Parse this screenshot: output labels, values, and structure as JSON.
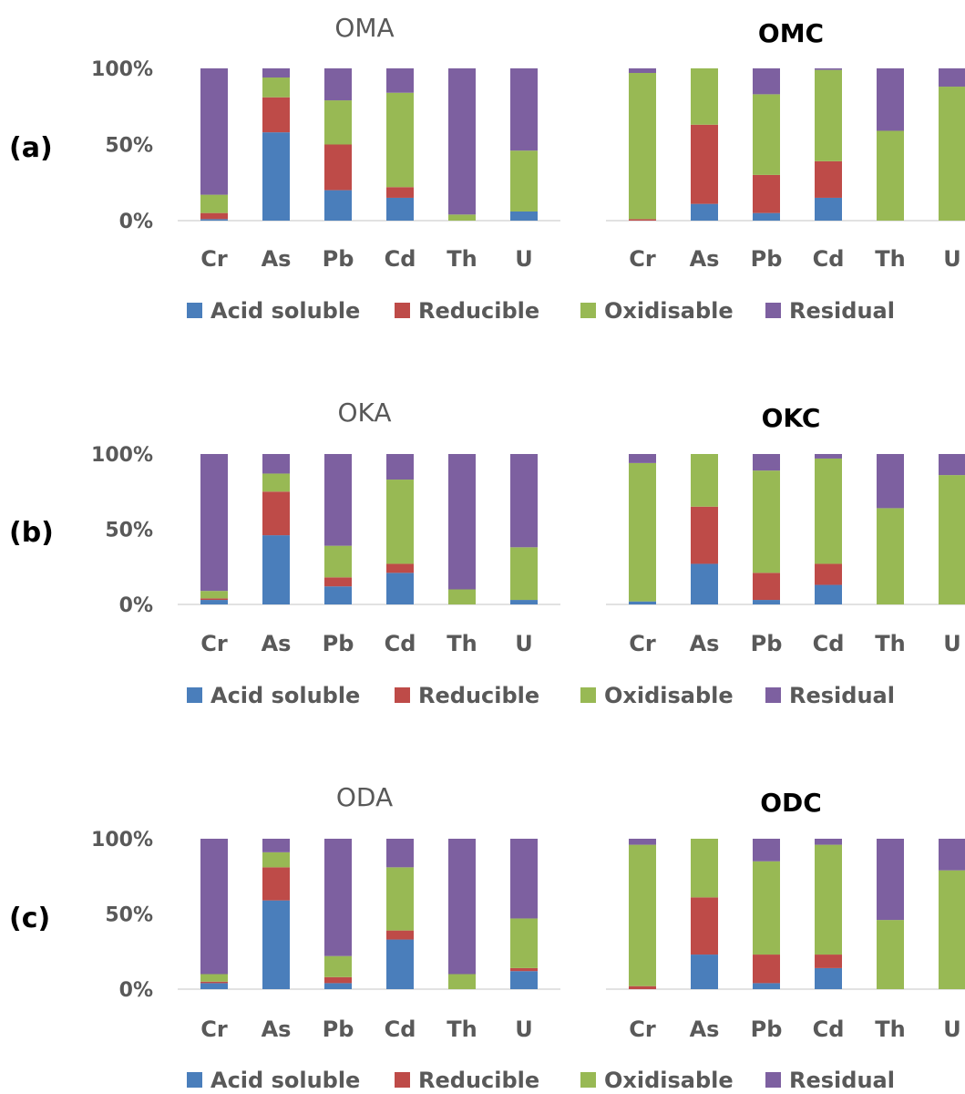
{
  "panel_labels": [
    "(a)",
    "(b)",
    "(c)"
  ],
  "legend": [
    {
      "label": "Acid soluble",
      "color": "#4a7ebb"
    },
    {
      "label": "Reducible",
      "color": "#be4b48"
    },
    {
      "label": "Oxidisable",
      "color": "#98b954"
    },
    {
      "label": "Residual",
      "color": "#7d60a0"
    }
  ],
  "y_ticks": [
    "100%",
    "50%",
    "0%"
  ],
  "chart_data": [
    {
      "type": "bar",
      "stacked": true,
      "title": "OMA",
      "title_bold": false,
      "categories": [
        "Cr",
        "As",
        "Pb",
        "Cd",
        "Th",
        "U"
      ],
      "ylim": [
        0,
        100
      ],
      "series": [
        {
          "name": "Acid soluble",
          "values": [
            1,
            58,
            20,
            15,
            0,
            6
          ]
        },
        {
          "name": "Reducible",
          "values": [
            4,
            23,
            30,
            7,
            0,
            0
          ]
        },
        {
          "name": "Oxidisable",
          "values": [
            12,
            13,
            29,
            62,
            4,
            40
          ]
        },
        {
          "name": "Residual",
          "values": [
            83,
            6,
            21,
            16,
            96,
            54
          ]
        }
      ]
    },
    {
      "type": "bar",
      "stacked": true,
      "title": "OMC",
      "title_bold": true,
      "categories": [
        "Cr",
        "As",
        "Pb",
        "Cd",
        "Th",
        "U"
      ],
      "ylim": [
        0,
        100
      ],
      "series": [
        {
          "name": "Acid soluble",
          "values": [
            0,
            11,
            5,
            15,
            0,
            0
          ]
        },
        {
          "name": "Reducible",
          "values": [
            1,
            52,
            25,
            24,
            0,
            0
          ]
        },
        {
          "name": "Oxidisable",
          "values": [
            96,
            37,
            53,
            60,
            59,
            88
          ]
        },
        {
          "name": "Residual",
          "values": [
            3,
            0,
            17,
            1,
            41,
            12
          ]
        }
      ]
    },
    {
      "type": "bar",
      "stacked": true,
      "title": "OKA",
      "title_bold": false,
      "categories": [
        "Cr",
        "As",
        "Pb",
        "Cd",
        "Th",
        "U"
      ],
      "ylim": [
        0,
        100
      ],
      "series": [
        {
          "name": "Acid soluble",
          "values": [
            3,
            46,
            12,
            21,
            0,
            3
          ]
        },
        {
          "name": "Reducible",
          "values": [
            1,
            29,
            6,
            6,
            0,
            0
          ]
        },
        {
          "name": "Oxidisable",
          "values": [
            5,
            12,
            21,
            56,
            10,
            35
          ]
        },
        {
          "name": "Residual",
          "values": [
            91,
            13,
            61,
            17,
            90,
            62
          ]
        }
      ]
    },
    {
      "type": "bar",
      "stacked": true,
      "title": "OKC",
      "title_bold": true,
      "categories": [
        "Cr",
        "As",
        "Pb",
        "Cd",
        "Th",
        "U"
      ],
      "ylim": [
        0,
        100
      ],
      "series": [
        {
          "name": "Acid soluble",
          "values": [
            2,
            27,
            3,
            13,
            0,
            0
          ]
        },
        {
          "name": "Reducible",
          "values": [
            0,
            38,
            18,
            14,
            0,
            0
          ]
        },
        {
          "name": "Oxidisable",
          "values": [
            92,
            35,
            68,
            70,
            64,
            86
          ]
        },
        {
          "name": "Residual",
          "values": [
            6,
            0,
            11,
            3,
            36,
            14
          ]
        }
      ]
    },
    {
      "type": "bar",
      "stacked": true,
      "title": "ODA",
      "title_bold": false,
      "categories": [
        "Cr",
        "As",
        "Pb",
        "Cd",
        "Th",
        "U"
      ],
      "ylim": [
        0,
        100
      ],
      "series": [
        {
          "name": "Acid soluble",
          "values": [
            4,
            59,
            4,
            33,
            0,
            12
          ]
        },
        {
          "name": "Reducible",
          "values": [
            1,
            22,
            4,
            6,
            0,
            2
          ]
        },
        {
          "name": "Oxidisable",
          "values": [
            5,
            10,
            14,
            42,
            10,
            33
          ]
        },
        {
          "name": "Residual",
          "values": [
            90,
            9,
            78,
            19,
            90,
            53
          ]
        }
      ]
    },
    {
      "type": "bar",
      "stacked": true,
      "title": "ODC",
      "title_bold": true,
      "categories": [
        "Cr",
        "As",
        "Pb",
        "Cd",
        "Th",
        "U"
      ],
      "ylim": [
        0,
        100
      ],
      "series": [
        {
          "name": "Acid soluble",
          "values": [
            0,
            23,
            4,
            14,
            0,
            0
          ]
        },
        {
          "name": "Reducible",
          "values": [
            2,
            38,
            19,
            9,
            0,
            0
          ]
        },
        {
          "name": "Oxidisable",
          "values": [
            94,
            39,
            62,
            73,
            46,
            79
          ]
        },
        {
          "name": "Residual",
          "values": [
            4,
            0,
            15,
            4,
            54,
            21
          ]
        }
      ]
    }
  ]
}
